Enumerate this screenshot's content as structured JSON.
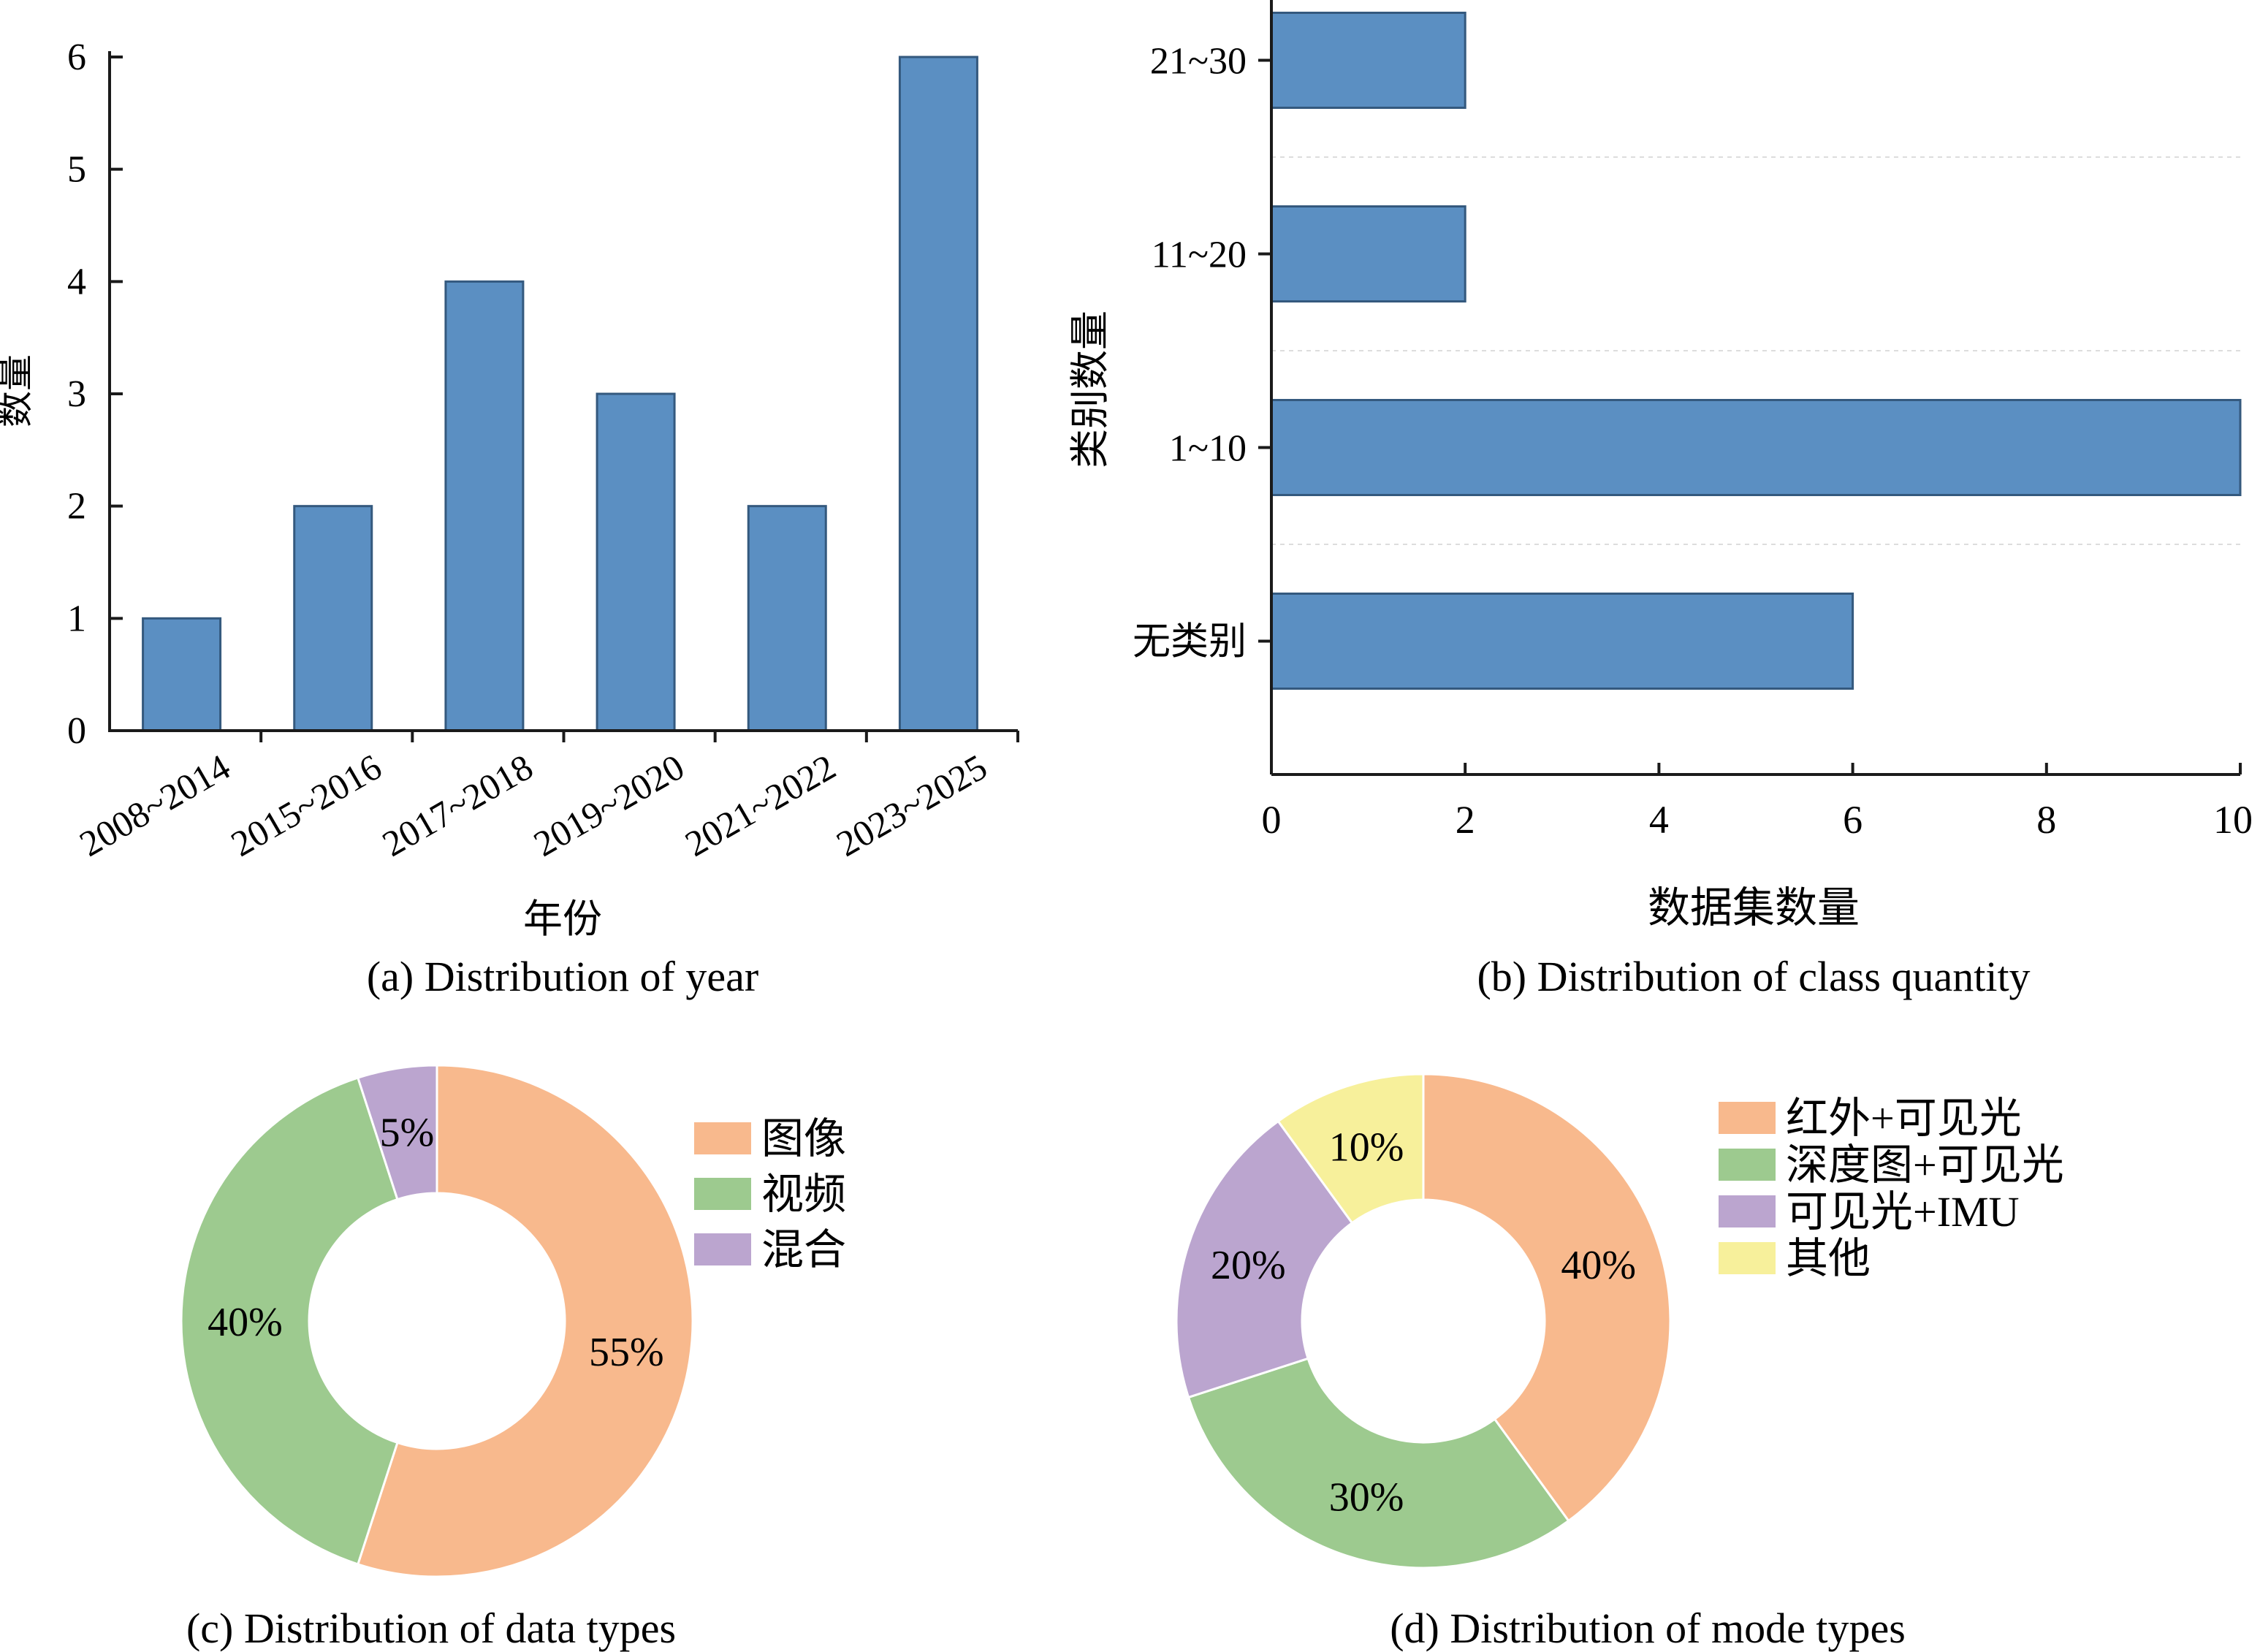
{
  "colors": {
    "bar_fill": "#5b8fc2",
    "bar_stroke": "#34597e",
    "axis": "#1a1a1a"
  },
  "chart_data": [
    {
      "type": "bar",
      "caption": "(a) Distribution of year",
      "xlabel": "年份",
      "ylabel": "数量",
      "categories": [
        "2008~2014",
        "2015~2016",
        "2017~2018",
        "2019~2020",
        "2021~2022",
        "2023~2025"
      ],
      "values": [
        1,
        2,
        4,
        3,
        2,
        6
      ],
      "ylim": [
        0,
        6
      ],
      "yticks": [
        0,
        1,
        2,
        3,
        4,
        5,
        6
      ],
      "grid": false
    },
    {
      "type": "bar",
      "orientation": "horizontal",
      "caption": "(b) Distribution of class quantity",
      "xlabel": "数据集数量",
      "ylabel": "类别数量",
      "categories": [
        "无类别",
        "1~10",
        "11~20",
        "21~30"
      ],
      "values": [
        6,
        10,
        2,
        2
      ],
      "xlim": [
        0,
        10
      ],
      "xticks": [
        0,
        2,
        4,
        6,
        8,
        10
      ],
      "grid": true
    },
    {
      "type": "pie",
      "subtype": "donut",
      "caption": "(c) Distribution of data types",
      "slices": [
        {
          "label": "图像",
          "value": 55,
          "text": "55%",
          "color": "#f8b98d"
        },
        {
          "label": "视频",
          "value": 40,
          "text": "40%",
          "color": "#9dca8f"
        },
        {
          "label": "混合",
          "value": 5,
          "text": "5%",
          "color": "#bba5cf"
        }
      ],
      "legend": "right"
    },
    {
      "type": "pie",
      "subtype": "donut",
      "caption": "(d) Distribution of mode types",
      "slices": [
        {
          "label": "红外+可见光",
          "value": 40,
          "text": "40%",
          "color": "#f8b98d"
        },
        {
          "label": "深度图+可见光",
          "value": 30,
          "text": "30%",
          "color": "#9dca8f"
        },
        {
          "label": "可见光+IMU",
          "value": 20,
          "text": "20%",
          "color": "#bba5cf"
        },
        {
          "label": "其他",
          "value": 10,
          "text": "10%",
          "color": "#f7f09b"
        }
      ],
      "legend": "right"
    }
  ]
}
